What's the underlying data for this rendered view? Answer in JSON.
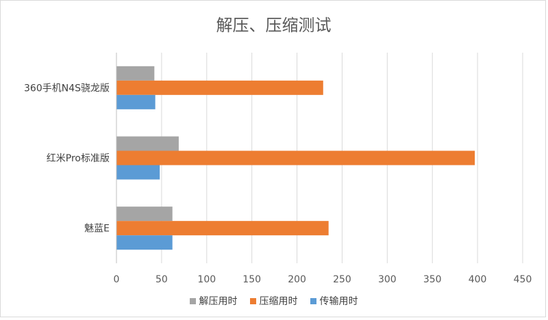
{
  "chart_data": {
    "type": "bar",
    "orientation": "horizontal",
    "title": "解压、压缩测试",
    "categories": [
      "360手机N4S骁龙版",
      "红米Pro标准版",
      "魅蓝E"
    ],
    "series": [
      {
        "name": "解压用时",
        "color": "#a5a5a5",
        "values": [
          42,
          69,
          62
        ]
      },
      {
        "name": "压缩用时",
        "color": "#ed7d31",
        "values": [
          229,
          397,
          235
        ]
      },
      {
        "name": "传输用时",
        "color": "#5b9bd5",
        "values": [
          43,
          48,
          62
        ]
      }
    ],
    "xlim": [
      0,
      450
    ],
    "xticks": [
      0,
      50,
      100,
      150,
      200,
      250,
      300,
      350,
      400,
      450
    ],
    "grid": true,
    "legend_position": "bottom"
  }
}
